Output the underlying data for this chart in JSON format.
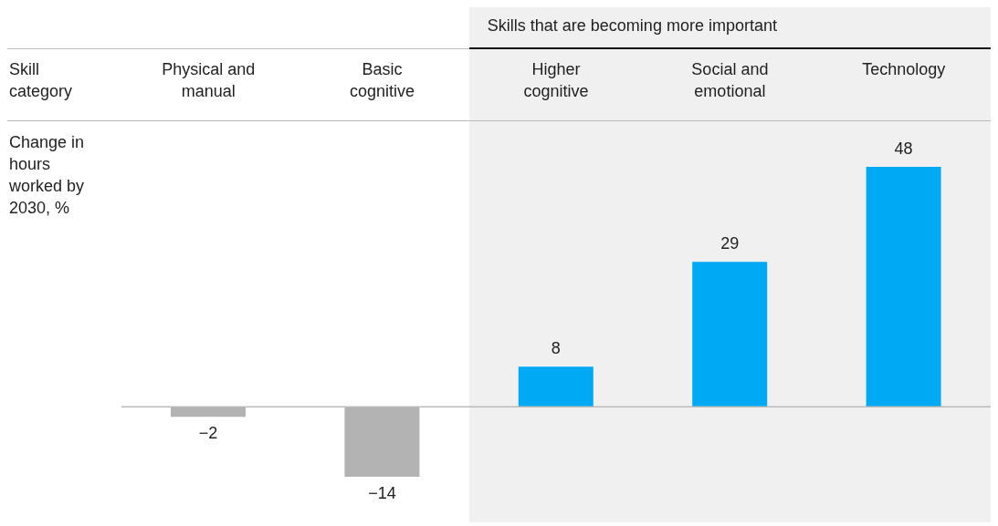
{
  "chart_data": {
    "type": "bar",
    "xlabel": "Skill category",
    "ylabel": "Change in hours worked by 2030, %",
    "categories": [
      "Physical and manual",
      "Basic cognitive",
      "Higher cognitive",
      "Social and emotional",
      "Technology"
    ],
    "values": [
      -2,
      -14,
      8,
      29,
      48
    ],
    "colors": [
      "#b3b3b3",
      "#b3b3b3",
      "#00a9f4",
      "#00a9f4",
      "#00a9f4"
    ],
    "data_labels": true,
    "bands": [
      {
        "axis": "x",
        "from": "Higher cognitive",
        "to": "Technology",
        "label": "Skills that are becoming more important",
        "color": "#f0f0f0"
      }
    ]
  }
}
